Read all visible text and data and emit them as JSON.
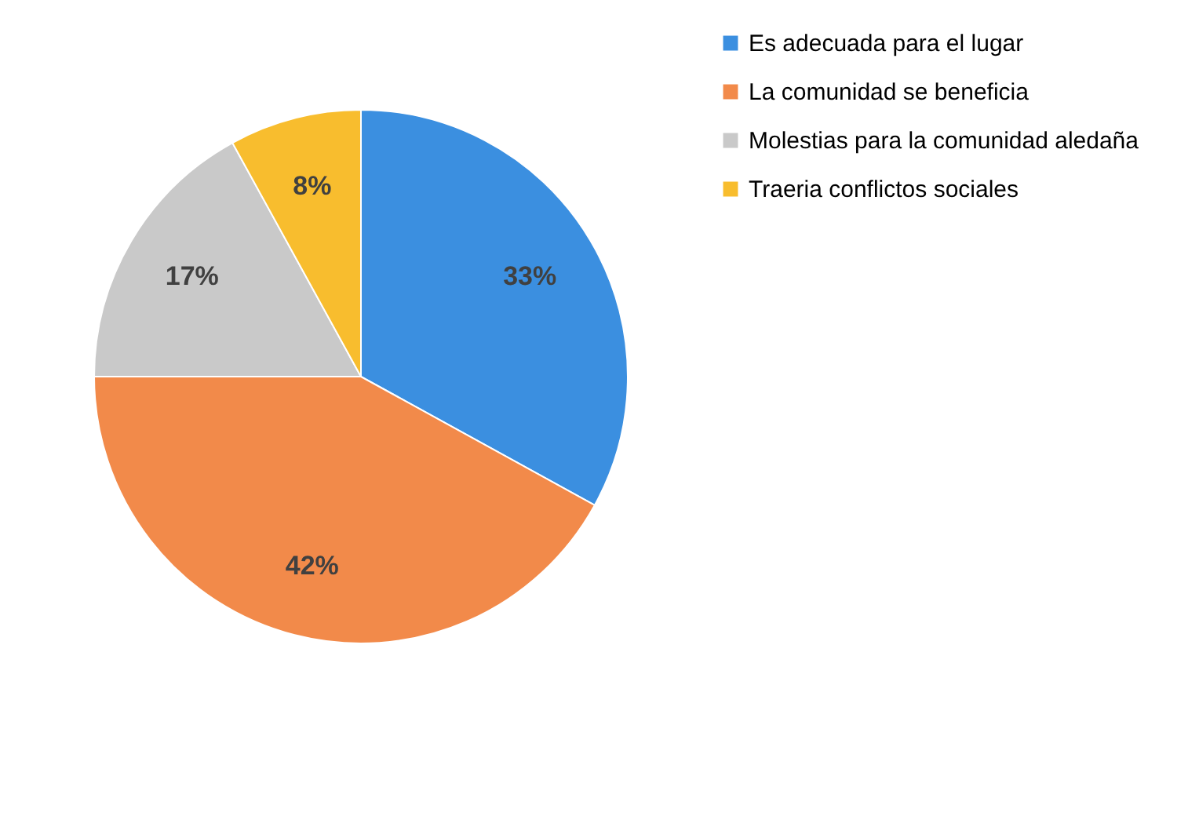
{
  "chart_data": {
    "type": "pie",
    "categories": [
      "Es adecuada para el lugar",
      "La comunidad se beneficia",
      "Molestias para la comunidad aledaña",
      "Traeria conflictos sociales"
    ],
    "values": [
      33,
      42,
      17,
      8
    ],
    "value_labels": [
      "33%",
      "42%",
      "17%",
      "8%"
    ],
    "colors": [
      "#3b8fe0",
      "#f28a4a",
      "#c9c9c9",
      "#f8bd2e"
    ],
    "legend": "right"
  }
}
